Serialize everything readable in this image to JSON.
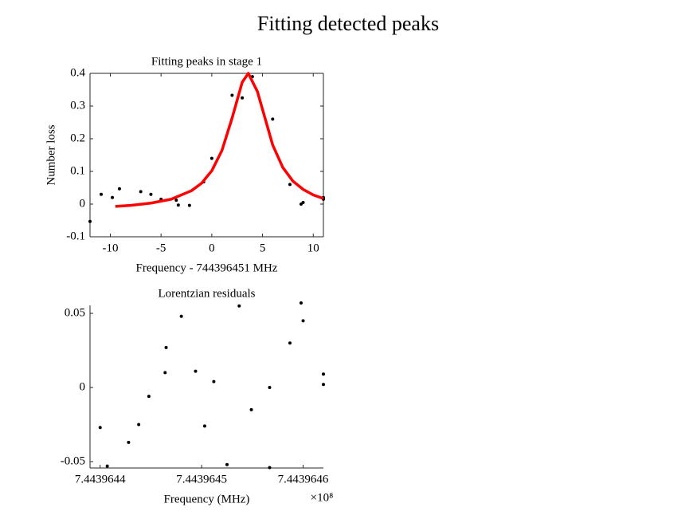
{
  "title": "Fitting detected peaks",
  "chart_data": [
    {
      "type": "scatter",
      "title": "Fitting peaks in stage 1",
      "x_label": "Frequency - 744396451 MHz",
      "y_label": "Number loss",
      "xlim": [
        -12,
        11
      ],
      "xticks": [
        -10,
        -5,
        0,
        5,
        10
      ],
      "ylim": [
        -0.1,
        0.4
      ],
      "yticks": [
        -0.1,
        0,
        0.1,
        0.2,
        0.3,
        0.4
      ],
      "box": true,
      "series": [
        {
          "type": "scatter",
          "color": "#000000",
          "x": [
            -12,
            -10.9,
            -9.8,
            -9.1,
            -7,
            -6,
            -5,
            -3.5,
            -3.3,
            -2.2,
            -0.8,
            0,
            2,
            3,
            4,
            6,
            7.7,
            8.8,
            9,
            11,
            11
          ],
          "values": [
            -0.053,
            0.03,
            0.02,
            0.047,
            0.038,
            0.03,
            0.015,
            0.012,
            -0.003,
            -0.004,
            0.068,
            0.14,
            0.333,
            0.325,
            0.39,
            0.26,
            0.06,
            0,
            0.005,
            0.015,
            0.02
          ]
        },
        {
          "type": "line",
          "color": "#ff0000",
          "x": [
            -9.5,
            -8,
            -6,
            -4,
            -2,
            -1,
            0,
            1,
            2,
            3,
            3.6,
            4.5,
            6,
            7,
            8,
            9,
            10,
            11
          ],
          "values": [
            -0.007,
            -0.004,
            0.003,
            0.015,
            0.041,
            0.064,
            0.102,
            0.164,
            0.263,
            0.373,
            0.4,
            0.344,
            0.181,
            0.112,
            0.07,
            0.045,
            0.028,
            0.017
          ]
        }
      ]
    },
    {
      "type": "scatter",
      "title": "Lorentzian residuals",
      "x_label": "Frequency (MHz)",
      "x_multiplier": "×10⁸",
      "xlim": [
        744396439,
        744396462
      ],
      "xticks": [
        {
          "value": 744396440,
          "label": "7.4439644"
        },
        {
          "value": 744396450,
          "label": "7.4439645"
        },
        {
          "value": 744396460,
          "label": "7.4439646"
        }
      ],
      "ylim": [
        -0.0543,
        0.0554
      ],
      "yticks": [
        -0.05,
        0,
        0.05
      ],
      "box": false,
      "series": [
        {
          "type": "scatter",
          "color": "#000000",
          "x": [
            744396440.0,
            744396440.7,
            744396442.8,
            744396443.8,
            744396444.8,
            744396446.4,
            744396446.5,
            744396448.0,
            744396449.4,
            744396450.3,
            744396451.2,
            744396452.5,
            744396453.7,
            744396454.9,
            744396456.7,
            744396456.7,
            744396458.7,
            744396459.8,
            744396460.0,
            744396462.0,
            744396462.0
          ],
          "values": [
            -0.027,
            -0.053,
            -0.037,
            -0.025,
            -0.006,
            0.01,
            0.027,
            0.048,
            0.011,
            -0.026,
            0.004,
            -0.052,
            0.055,
            -0.015,
            0,
            -0.054,
            0.03,
            0.057,
            0.045,
            0.009,
            0.002
          ]
        }
      ]
    }
  ]
}
